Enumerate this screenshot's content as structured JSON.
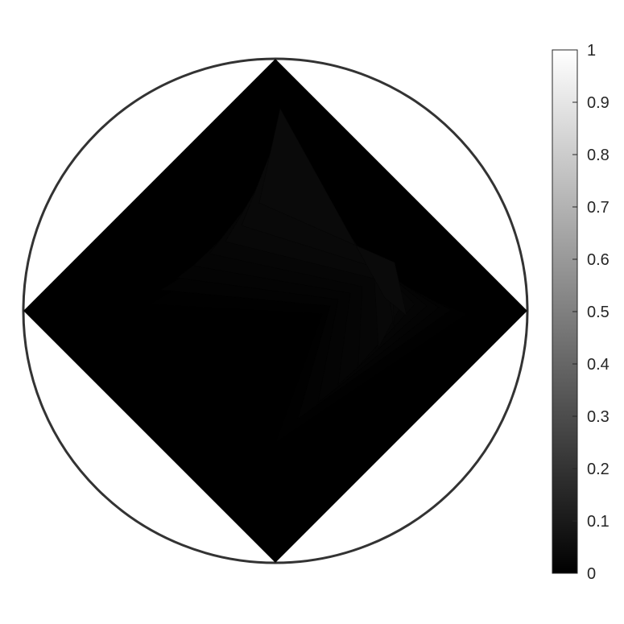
{
  "chart_data": {
    "type": "heatmap",
    "title": "",
    "xlabel": "",
    "ylabel": "",
    "domain_shape": "diamond inscribed in unit circle",
    "colormap": "gray",
    "clim": [
      0,
      1
    ],
    "value_range_shown": [
      0,
      0.04
    ],
    "description_levels": [
      0.0,
      0.005,
      0.01,
      0.015,
      0.02,
      0.025,
      0.03,
      0.035,
      0.04
    ],
    "colorbar": {
      "ticks": [
        0,
        0.1,
        0.2,
        0.3,
        0.4,
        0.5,
        0.6,
        0.7,
        0.8,
        0.9,
        1
      ],
      "tick_labels": [
        "0",
        "0.1",
        "0.2",
        "0.3",
        "0.4",
        "0.5",
        "0.6",
        "0.7",
        "0.8",
        "0.9",
        "1"
      ],
      "location": "right"
    },
    "grid": false,
    "show_circle_boundary": true
  },
  "colors": {
    "background": "#ffffff",
    "axis_line": "#262626",
    "circle_outline": "#333333"
  }
}
